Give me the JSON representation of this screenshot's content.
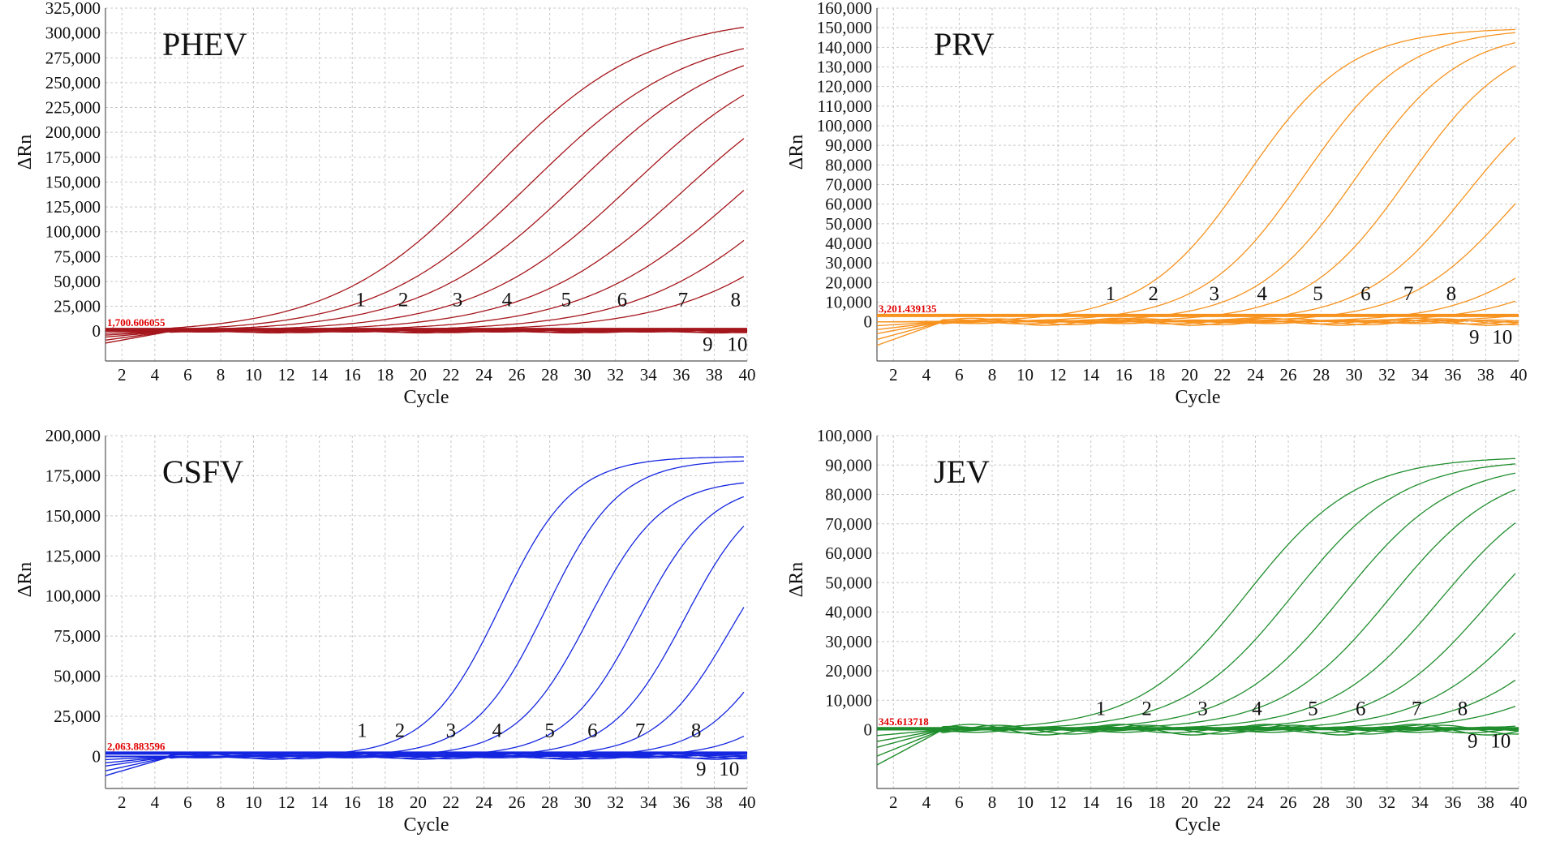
{
  "chart_data": [
    {
      "type": "line",
      "title": "PHEV",
      "xlabel": "Cycle",
      "ylabel": "ΔRn",
      "color": "#a5161c",
      "xlim": [
        1,
        40
      ],
      "ylim": [
        -30000,
        325000
      ],
      "x_ticks": [
        2,
        4,
        6,
        8,
        10,
        12,
        14,
        16,
        18,
        20,
        22,
        24,
        26,
        28,
        30,
        32,
        34,
        36,
        38,
        40
      ],
      "y_ticks": [
        {
          "value": 0,
          "label": "0"
        },
        {
          "value": 25000,
          "label": "25,000"
        },
        {
          "value": 50000,
          "label": "50,000"
        },
        {
          "value": 75000,
          "label": "75,000"
        },
        {
          "value": 100000,
          "label": "100,000"
        },
        {
          "value": 125000,
          "label": "125,000"
        },
        {
          "value": 150000,
          "label": "150,000"
        },
        {
          "value": 175000,
          "label": "175,000"
        },
        {
          "value": 200000,
          "label": "200,000"
        },
        {
          "value": 225000,
          "label": "225,000"
        },
        {
          "value": 250000,
          "label": "250,000"
        },
        {
          "value": 275000,
          "label": "275,000"
        },
        {
          "value": 300000,
          "label": "300,000"
        },
        {
          "value": 325000,
          "label": "325,000"
        }
      ],
      "threshold": {
        "value": 1700.606055,
        "label": "1,700.606055"
      },
      "series": [
        {
          "name": "1",
          "ct": 16.3,
          "plateau": 320000,
          "k": 0.21
        },
        {
          "name": "2",
          "ct": 19.0,
          "plateau": 305000,
          "k": 0.21
        },
        {
          "name": "3",
          "ct": 21.7,
          "plateau": 300000,
          "k": 0.21
        },
        {
          "name": "4",
          "ct": 25.0,
          "plateau": 295000,
          "k": 0.21
        },
        {
          "name": "5",
          "ct": 28.2,
          "plateau": 285000,
          "k": 0.21
        },
        {
          "name": "6",
          "ct": 31.5,
          "plateau": 275000,
          "k": 0.21
        },
        {
          "name": "7",
          "ct": 35.0,
          "plateau": 270000,
          "k": 0.21
        },
        {
          "name": "8",
          "ct": 38.5,
          "plateau": 280000,
          "k": 0.21
        },
        {
          "name": "9",
          "ct": 0,
          "plateau": 0,
          "k": 0
        },
        {
          "name": "10",
          "ct": 0,
          "plateau": 0,
          "k": 0
        }
      ],
      "curve_labels": [
        {
          "text": "1",
          "x": 16.5,
          "y": 25000
        },
        {
          "text": "2",
          "x": 19.1,
          "y": 25000
        },
        {
          "text": "3",
          "x": 22.4,
          "y": 25000
        },
        {
          "text": "4",
          "x": 25.4,
          "y": 25000
        },
        {
          "text": "5",
          "x": 29.0,
          "y": 25000
        },
        {
          "text": "6",
          "x": 32.4,
          "y": 25000
        },
        {
          "text": "7",
          "x": 36.1,
          "y": 25000
        },
        {
          "text": "8",
          "x": 39.3,
          "y": 25000
        },
        {
          "text": "9",
          "x": 37.6,
          "y": -20000
        },
        {
          "text": "10",
          "x": 39.4,
          "y": -20000
        }
      ]
    },
    {
      "type": "line",
      "title": "PRV",
      "xlabel": "Cycle",
      "ylabel": "ΔRn",
      "color": "#f7921e",
      "xlim": [
        1,
        40
      ],
      "ylim": [
        -20000,
        160000
      ],
      "x_ticks": [
        2,
        4,
        6,
        8,
        10,
        12,
        14,
        16,
        18,
        20,
        22,
        24,
        26,
        28,
        30,
        32,
        34,
        36,
        38,
        40
      ],
      "y_ticks": [
        {
          "value": 0,
          "label": "0"
        },
        {
          "value": 10000,
          "label": "10,000"
        },
        {
          "value": 20000,
          "label": "20,000"
        },
        {
          "value": 30000,
          "label": "30,000"
        },
        {
          "value": 40000,
          "label": "40,000"
        },
        {
          "value": 50000,
          "label": "50,000"
        },
        {
          "value": 60000,
          "label": "60,000"
        },
        {
          "value": 70000,
          "label": "70,000"
        },
        {
          "value": 80000,
          "label": "80,000"
        },
        {
          "value": 90000,
          "label": "90,000"
        },
        {
          "value": 100000,
          "label": "100,000"
        },
        {
          "value": 110000,
          "label": "110,000"
        },
        {
          "value": 120000,
          "label": "120,000"
        },
        {
          "value": 130000,
          "label": "130,000"
        },
        {
          "value": 140000,
          "label": "140,000"
        },
        {
          "value": 150000,
          "label": "150,000"
        },
        {
          "value": 160000,
          "label": "160,000"
        }
      ],
      "threshold": {
        "value": 3201.439135,
        "label": "3,201.439135"
      },
      "series": [
        {
          "name": "1",
          "ct": 15.5,
          "plateau": 150000,
          "k": 0.32
        },
        {
          "name": "2",
          "ct": 19.0,
          "plateau": 150000,
          "k": 0.32
        },
        {
          "name": "3",
          "ct": 22.2,
          "plateau": 149000,
          "k": 0.32
        },
        {
          "name": "4",
          "ct": 25.3,
          "plateau": 147000,
          "k": 0.32
        },
        {
          "name": "5",
          "ct": 28.8,
          "plateau": 130000,
          "k": 0.32
        },
        {
          "name": "6",
          "ct": 31.5,
          "plateau": 115000,
          "k": 0.32
        },
        {
          "name": "7",
          "ct": 34.5,
          "plateau": 75000,
          "k": 0.32
        },
        {
          "name": "8",
          "ct": 36.5,
          "plateau": 58000,
          "k": 0.32
        },
        {
          "name": "9",
          "ct": 38.0,
          "plateau": 26000,
          "k": 0.32
        },
        {
          "name": "10",
          "ct": 0,
          "plateau": 0,
          "k": 0
        }
      ],
      "curve_labels": [
        {
          "text": "1",
          "x": 15.2,
          "y": 11000
        },
        {
          "text": "2",
          "x": 17.8,
          "y": 11000
        },
        {
          "text": "3",
          "x": 21.5,
          "y": 11000
        },
        {
          "text": "4",
          "x": 24.4,
          "y": 11000
        },
        {
          "text": "5",
          "x": 27.8,
          "y": 11000
        },
        {
          "text": "6",
          "x": 30.7,
          "y": 11000
        },
        {
          "text": "7",
          "x": 33.3,
          "y": 11000
        },
        {
          "text": "8",
          "x": 35.9,
          "y": 11000
        },
        {
          "text": "9",
          "x": 37.3,
          "y": -11000
        },
        {
          "text": "10",
          "x": 39.0,
          "y": -11000
        }
      ]
    },
    {
      "type": "line",
      "title": "CSFV",
      "xlabel": "Cycle",
      "ylabel": "ΔRn",
      "color": "#1526e0",
      "xlim": [
        1,
        40
      ],
      "ylim": [
        -20000,
        200000
      ],
      "x_ticks": [
        2,
        4,
        6,
        8,
        10,
        12,
        14,
        16,
        18,
        20,
        22,
        24,
        26,
        28,
        30,
        32,
        34,
        36,
        38,
        40
      ],
      "y_ticks": [
        {
          "value": 0,
          "label": "0"
        },
        {
          "value": 25000,
          "label": "25,000"
        },
        {
          "value": 50000,
          "label": "50,000"
        },
        {
          "value": 75000,
          "label": "75,000"
        },
        {
          "value": 100000,
          "label": "100,000"
        },
        {
          "value": 125000,
          "label": "125,000"
        },
        {
          "value": 150000,
          "label": "150,000"
        },
        {
          "value": 175000,
          "label": "175,000"
        },
        {
          "value": 200000,
          "label": "200,000"
        }
      ],
      "threshold": {
        "value": 2063.883596,
        "label": "2,063.883596"
      },
      "series": [
        {
          "name": "1",
          "ct": 17.0,
          "plateau": 187000,
          "k": 0.45
        },
        {
          "name": "2",
          "ct": 19.8,
          "plateau": 185000,
          "k": 0.45
        },
        {
          "name": "3",
          "ct": 22.4,
          "plateau": 173000,
          "k": 0.45
        },
        {
          "name": "4",
          "ct": 25.4,
          "plateau": 171000,
          "k": 0.45
        },
        {
          "name": "5",
          "ct": 28.2,
          "plateau": 172000,
          "k": 0.45
        },
        {
          "name": "6",
          "ct": 30.9,
          "plateau": 155000,
          "k": 0.45
        },
        {
          "name": "7",
          "ct": 33.6,
          "plateau": 130000,
          "k": 0.45
        },
        {
          "name": "8",
          "ct": 36.1,
          "plateau": 100000,
          "k": 0.45
        },
        {
          "name": "9",
          "ct": 38.2,
          "plateau": 40000,
          "k": 0.45
        },
        {
          "name": "10",
          "ct": 0,
          "plateau": 0,
          "k": 0
        }
      ],
      "curve_labels": [
        {
          "text": "1",
          "x": 16.6,
          "y": 12000
        },
        {
          "text": "2",
          "x": 18.9,
          "y": 12000
        },
        {
          "text": "3",
          "x": 22.0,
          "y": 12000
        },
        {
          "text": "4",
          "x": 24.8,
          "y": 12000
        },
        {
          "text": "5",
          "x": 28.0,
          "y": 12000
        },
        {
          "text": "6",
          "x": 30.6,
          "y": 12000
        },
        {
          "text": "7",
          "x": 33.5,
          "y": 12000
        },
        {
          "text": "8",
          "x": 36.9,
          "y": 12000
        },
        {
          "text": "9",
          "x": 37.2,
          "y": -12000
        },
        {
          "text": "10",
          "x": 38.9,
          "y": -12000
        }
      ]
    },
    {
      "type": "line",
      "title": "JEV",
      "xlabel": "Cycle",
      "ylabel": "ΔRn",
      "color": "#1f8d2c",
      "xlim": [
        1,
        40
      ],
      "ylim": [
        -20000,
        100000
      ],
      "x_ticks": [
        2,
        4,
        6,
        8,
        10,
        12,
        14,
        16,
        18,
        20,
        22,
        24,
        26,
        28,
        30,
        32,
        34,
        36,
        38,
        40
      ],
      "y_ticks": [
        {
          "value": 0,
          "label": "0"
        },
        {
          "value": 10000,
          "label": "10,000"
        },
        {
          "value": 20000,
          "label": "20,000"
        },
        {
          "value": 30000,
          "label": "30,000"
        },
        {
          "value": 40000,
          "label": "40,000"
        },
        {
          "value": 50000,
          "label": "50,000"
        },
        {
          "value": 60000,
          "label": "60,000"
        },
        {
          "value": 70000,
          "label": "70,000"
        },
        {
          "value": 80000,
          "label": "80,000"
        },
        {
          "value": 90000,
          "label": "90,000"
        },
        {
          "value": 100000,
          "label": "100,000"
        }
      ],
      "threshold": {
        "value": 345.613718,
        "label": "345.613718"
      },
      "series": [
        {
          "name": "1",
          "ct": 15.5,
          "plateau": 93000,
          "k": 0.3
        },
        {
          "name": "2",
          "ct": 18.3,
          "plateau": 92000,
          "k": 0.3
        },
        {
          "name": "3",
          "ct": 21.3,
          "plateau": 91000,
          "k": 0.3
        },
        {
          "name": "4",
          "ct": 24.2,
          "plateau": 90000,
          "k": 0.3
        },
        {
          "name": "5",
          "ct": 27.2,
          "plateau": 88000,
          "k": 0.3
        },
        {
          "name": "6",
          "ct": 30.1,
          "plateau": 85000,
          "k": 0.3
        },
        {
          "name": "7",
          "ct": 33.0,
          "plateau": 80000,
          "k": 0.3
        },
        {
          "name": "8",
          "ct": 35.5,
          "plateau": 68000,
          "k": 0.3
        },
        {
          "name": "9",
          "ct": 37.5,
          "plateau": 52000,
          "k": 0.3
        },
        {
          "name": "10",
          "ct": 38.5,
          "plateau": 10000,
          "k": 0.3
        }
      ],
      "curve_labels": [
        {
          "text": "1",
          "x": 14.6,
          "y": 5000
        },
        {
          "text": "2",
          "x": 17.4,
          "y": 5000
        },
        {
          "text": "3",
          "x": 20.8,
          "y": 5000
        },
        {
          "text": "4",
          "x": 24.1,
          "y": 5000
        },
        {
          "text": "5",
          "x": 27.5,
          "y": 5000
        },
        {
          "text": "6",
          "x": 30.4,
          "y": 5000
        },
        {
          "text": "7",
          "x": 33.8,
          "y": 5000
        },
        {
          "text": "8",
          "x": 36.6,
          "y": 5000
        },
        {
          "text": "9",
          "x": 37.2,
          "y": -6000
        },
        {
          "text": "10",
          "x": 38.9,
          "y": -6000
        }
      ]
    }
  ]
}
